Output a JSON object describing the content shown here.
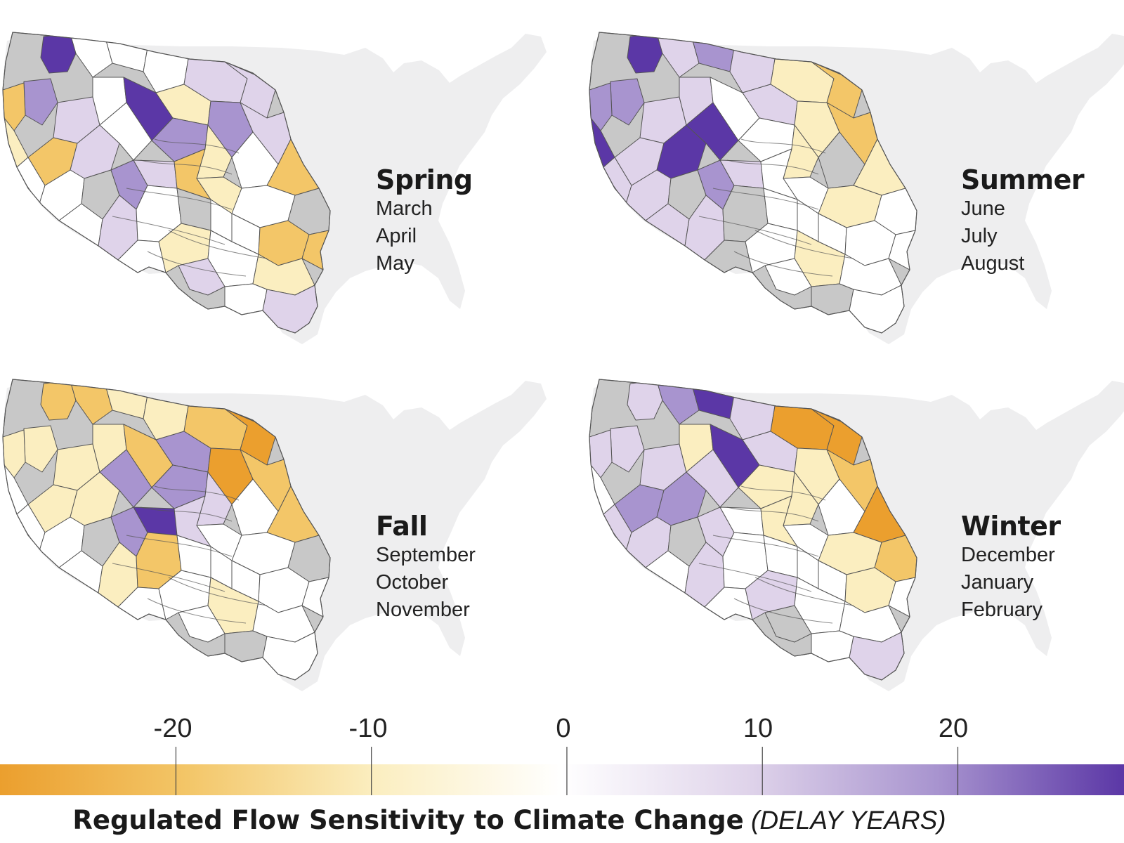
{
  "colors": {
    "background_map": "#eeeeef",
    "unregulated": "#c8c8c8",
    "boundary": "#555555",
    "delay_ramp": [
      "#eb9f2e",
      "#f3c668",
      "#fbeec0",
      "#ffffff",
      "#dfd3ea",
      "#a894cf",
      "#5b37a6"
    ]
  },
  "panels": [
    {
      "id": "spring",
      "name": "Spring",
      "months": [
        "March",
        "April",
        "May"
      ]
    },
    {
      "id": "summer",
      "name": "Summer",
      "months": [
        "June",
        "July",
        "August"
      ]
    },
    {
      "id": "fall",
      "name": "Fall",
      "months": [
        "September",
        "October",
        "November"
      ]
    },
    {
      "id": "winter",
      "name": "Winter",
      "months": [
        "December",
        "January",
        "February"
      ]
    }
  ],
  "legend": {
    "title": "Regulated Flow Sensitivity to Climate Change",
    "units": "(DELAY YEARS)",
    "ticks": [
      "-20",
      "-10",
      "0",
      "10",
      "20"
    ],
    "tick_values": [
      -20,
      -10,
      0,
      10,
      20
    ],
    "range": [
      -29,
      28.5
    ]
  }
}
